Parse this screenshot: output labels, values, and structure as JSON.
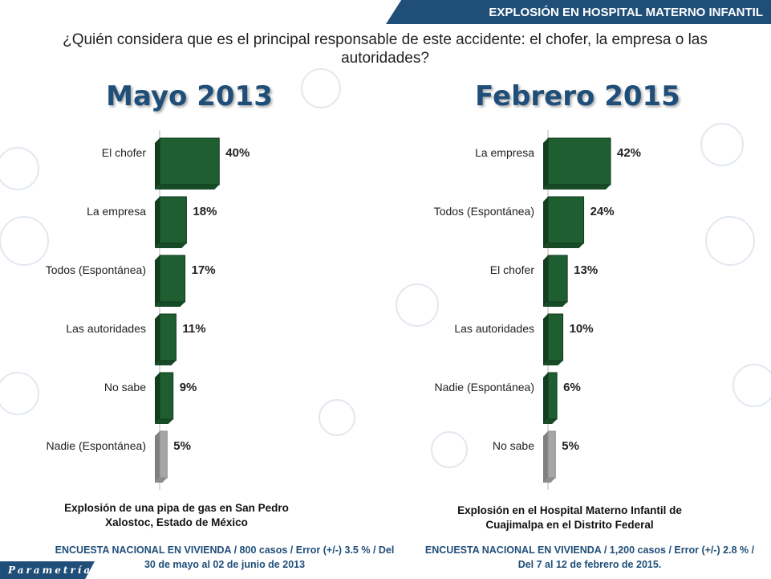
{
  "header": {
    "banner": "EXPLOSIÓN EN HOSPITAL MATERNO INFANTIL"
  },
  "question": "¿Quién considera que es el principal responsable de este accidente: el chofer, la empresa o las autoridades?",
  "logo": "Parametría",
  "colors": {
    "bar": "#1e5e30",
    "bar_gray": "#a6a6a6",
    "accent": "#1f4e79"
  },
  "chart_data": [
    {
      "type": "bar",
      "orientation": "horizontal",
      "title": "Mayo 2013",
      "categories": [
        "El chofer",
        "La empresa",
        "Todos (Espontánea)",
        "Las autoridades",
        "No sabe",
        "Nadie (Espontánea)"
      ],
      "values": [
        40,
        18,
        17,
        11,
        9,
        5
      ],
      "labels": [
        "40%",
        "18%",
        "17%",
        "11%",
        "9%",
        "5%"
      ],
      "gray_last": true,
      "caption": "Explosión de una pipa de gas en San Pedro Xalostoc, Estado de México",
      "survey": "ENCUESTA NACIONAL EN VIVIENDA / 800 casos / Error (+/-) 3.5 % / Del 30 de mayo al 02 de junio de 2013"
    },
    {
      "type": "bar",
      "orientation": "horizontal",
      "title": "Febrero 2015",
      "categories": [
        "La empresa",
        "Todos (Espontánea)",
        "El chofer",
        "Las autoridades",
        "Nadie (Espontánea)",
        "No sabe"
      ],
      "values": [
        42,
        24,
        13,
        10,
        6,
        5
      ],
      "labels": [
        "42%",
        "24%",
        "13%",
        "10%",
        "6%",
        "5%"
      ],
      "gray_last": true,
      "caption": "Explosión en el Hospital Materno Infantil de Cuajimalpa en el Distrito Federal",
      "survey": "ENCUESTA NACIONAL EN VIVIENDA / 1,200 casos / Error (+/-) 2.8 % / Del 7 al 12 de febrero de 2015."
    }
  ]
}
